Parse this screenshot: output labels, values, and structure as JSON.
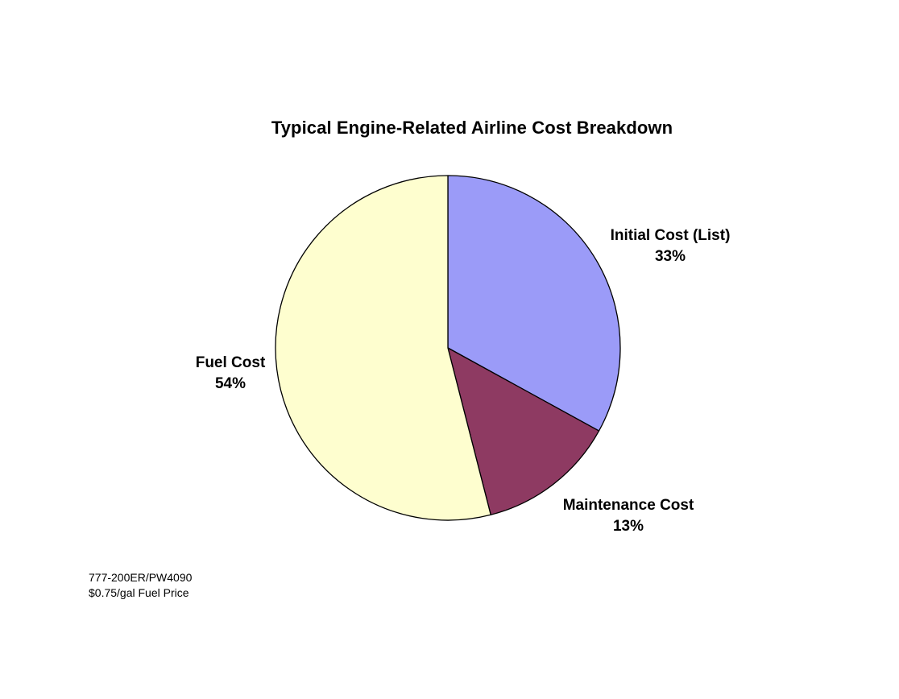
{
  "chart_data": {
    "type": "pie",
    "title": "Typical Engine-Related Airline Cost Breakdown",
    "slices": [
      {
        "label": "Initial Cost (List)",
        "percent_label": "33%",
        "value": 33,
        "color": "#9B9BF8"
      },
      {
        "label": "Maintenance Cost",
        "percent_label": "13%",
        "value": 13,
        "color": "#8E3A62"
      },
      {
        "label": "Fuel Cost",
        "percent_label": "54%",
        "value": 54,
        "color": "#FEFECF"
      }
    ],
    "start_angle": "12 o'clock",
    "direction": "clockwise",
    "legend": "none",
    "data_labels": "outside slices"
  },
  "footnote": {
    "line1": "777-200ER/PW4090",
    "line2": "$0.75/gal Fuel Price"
  }
}
